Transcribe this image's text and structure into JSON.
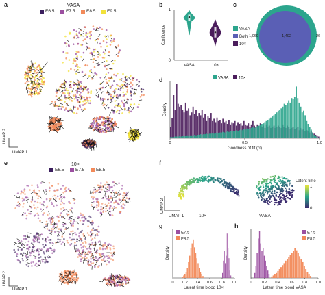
{
  "panel_letters": {
    "a": "a",
    "b": "b",
    "c": "c",
    "d": "d",
    "e": "e",
    "f": "f",
    "g": "g",
    "h": "h"
  },
  "colors": {
    "vasa": "#2ca58d",
    "tenx": "#4b1d5c",
    "both": "#5a5fb5",
    "e65": "#3b1f5e",
    "e75": "#9b4fa0",
    "e85": "#f28a5a",
    "e95": "#f2e23a",
    "latent_low": "#3b2b6e",
    "latent_mid": "#2aa58a",
    "latent_high": "#e6e33a"
  },
  "panel_a": {
    "title": "VASA",
    "legend": [
      "E6.5",
      "E7.5",
      "E8.5",
      "E9.5"
    ],
    "axis_y": "UMAP 2",
    "axis_x": "UMAP 1"
  },
  "panel_e": {
    "title": "10×",
    "legend": [
      "E6.5",
      "E7.5",
      "E8.5"
    ],
    "axis_y": "UMAP 2",
    "axis_x": "UMAP 1"
  },
  "panel_f": {
    "axis_y": "UMAP 2",
    "axis_x": "UMAP 1",
    "label_left": "10×",
    "label_right": "VASA",
    "colorbar_title": "Latent time",
    "colorbar_ticks": [
      "1",
      "0"
    ]
  },
  "chart_data": [
    {
      "id": "b",
      "type": "violin",
      "categories": [
        "VASA",
        "10×"
      ],
      "ylabel": "Confidence",
      "ylim": [
        0,
        1
      ],
      "yticks": [
        "0",
        "1"
      ],
      "series": [
        {
          "name": "VASA",
          "median": 0.85,
          "q1": 0.78,
          "q3": 0.9,
          "min": 0.5,
          "max": 0.98
        },
        {
          "name": "10×",
          "median": 0.55,
          "q1": 0.45,
          "q3": 0.65,
          "min": 0.3,
          "max": 0.8
        }
      ]
    },
    {
      "id": "c",
      "type": "venn",
      "legend": [
        "VASA",
        "Both",
        "10×"
      ],
      "values": {
        "vasa_only": "1,069",
        "both": "1,492",
        "tenx_only": "26"
      }
    },
    {
      "id": "d",
      "type": "histogram",
      "xlabel": "Goodness of fit (r²)",
      "ylabel": "Density",
      "xlim": [
        0,
        1
      ],
      "xticks": [
        "0",
        "0.5",
        "1.0"
      ],
      "legend": [
        "VASA",
        "10×"
      ],
      "series": [
        {
          "name": "10×",
          "values": [
            0.2,
            0.35,
            0.75,
            0.5,
            0.95,
            0.6,
            0.55,
            0.58,
            0.5,
            0.45,
            0.62,
            0.48,
            0.52,
            0.4,
            0.45,
            0.55,
            0.42,
            0.5,
            0.38,
            0.44,
            0.4,
            0.5,
            0.36,
            0.42,
            0.3,
            0.38,
            0.35,
            0.44,
            0.3,
            0.34,
            0.28,
            0.36,
            0.3,
            0.32,
            0.26,
            0.34,
            0.28,
            0.3,
            0.25,
            0.32,
            0.24,
            0.28,
            0.26,
            0.3,
            0.22,
            0.28,
            0.25,
            0.26,
            0.22,
            0.3,
            0.24,
            0.22,
            0.26,
            0.2,
            0.24,
            0.3,
            0.22,
            0.2,
            0.24,
            0.22,
            0.26,
            0.2,
            0.22,
            0.18,
            0.24,
            0.2,
            0.22,
            0.18,
            0.2,
            0.22,
            0.18,
            0.2,
            0.22,
            0.2,
            0.18,
            0.24,
            0.2,
            0.18,
            0.22,
            0.2,
            0.16,
            0.18,
            0.2,
            0.16,
            0.18,
            0.2,
            0.14,
            0.18,
            0.15,
            0.16,
            0.12,
            0.14,
            0.12,
            0.1,
            0.12,
            0.1,
            0.08,
            0.06,
            0.05,
            0.03
          ]
        },
        {
          "name": "VASA",
          "values": [
            0.02,
            0.02,
            0.02,
            0.03,
            0.03,
            0.03,
            0.04,
            0.03,
            0.04,
            0.04,
            0.04,
            0.05,
            0.04,
            0.05,
            0.05,
            0.05,
            0.06,
            0.05,
            0.06,
            0.06,
            0.07,
            0.06,
            0.07,
            0.07,
            0.08,
            0.07,
            0.08,
            0.08,
            0.09,
            0.08,
            0.09,
            0.1,
            0.09,
            0.1,
            0.1,
            0.11,
            0.1,
            0.11,
            0.12,
            0.11,
            0.12,
            0.13,
            0.12,
            0.13,
            0.14,
            0.13,
            0.14,
            0.15,
            0.14,
            0.16,
            0.15,
            0.17,
            0.16,
            0.17,
            0.18,
            0.19,
            0.18,
            0.2,
            0.21,
            0.22,
            0.23,
            0.25,
            0.26,
            0.28,
            0.3,
            0.32,
            0.34,
            0.36,
            0.38,
            0.4,
            0.42,
            0.45,
            0.48,
            0.5,
            0.52,
            0.55,
            0.6,
            0.58,
            0.62,
            0.66,
            0.62,
            0.7,
            0.68,
            0.72,
            0.9,
            0.7,
            0.62,
            0.55,
            0.45,
            0.48,
            0.4,
            0.3,
            0.25,
            0.2,
            0.15,
            0.1,
            0.06,
            0.04,
            0.02,
            0.01
          ]
        }
      ]
    },
    {
      "id": "g",
      "type": "histogram",
      "xlabel": "Latent time blood 10×",
      "ylabel": "Density",
      "xlim": [
        0,
        1
      ],
      "xticks": [
        "0",
        "0.2",
        "0.4",
        "0.6",
        "0.8",
        "1.0"
      ],
      "legend": [
        "E7.5",
        "E8.5"
      ],
      "series": [
        {
          "name": "E7.5",
          "x_start": 0.8,
          "x_end": 0.95,
          "values": [
            0.1,
            0.35,
            0.55,
            0.3,
            0.45,
            0.9,
            0.6,
            0.4,
            0.15,
            0.05
          ]
        },
        {
          "name": "E8.5",
          "x_start": 0.15,
          "x_end": 0.5,
          "values": [
            0.02,
            0.05,
            0.08,
            0.12,
            0.2,
            0.32,
            0.45,
            0.6,
            0.7,
            0.78,
            0.62,
            0.5,
            0.4,
            0.3,
            0.2,
            0.12,
            0.07,
            0.04
          ]
        }
      ]
    },
    {
      "id": "h",
      "type": "histogram",
      "xlabel": "Latent time blood VASA",
      "ylabel": "Density",
      "xlim": [
        0,
        1
      ],
      "xticks": [
        "0",
        "0.2",
        "0.4",
        "0.6",
        "0.8",
        "1.0"
      ],
      "legend": [
        "E7.5",
        "E8.5"
      ],
      "series": [
        {
          "name": "E7.5",
          "x_start": 0.05,
          "x_end": 0.28,
          "values": [
            0.1,
            0.25,
            0.5,
            0.8,
            0.95,
            0.7,
            0.55,
            0.6,
            0.45,
            0.35,
            0.25,
            0.15,
            0.08
          ]
        },
        {
          "name": "E8.5",
          "x_start": 0.3,
          "x_end": 0.9,
          "values": [
            0.03,
            0.05,
            0.08,
            0.1,
            0.14,
            0.18,
            0.22,
            0.26,
            0.3,
            0.35,
            0.38,
            0.42,
            0.46,
            0.5,
            0.55,
            0.6,
            0.56,
            0.5,
            0.44,
            0.38,
            0.32,
            0.25,
            0.18,
            0.12,
            0.07,
            0.04
          ]
        }
      ]
    }
  ]
}
